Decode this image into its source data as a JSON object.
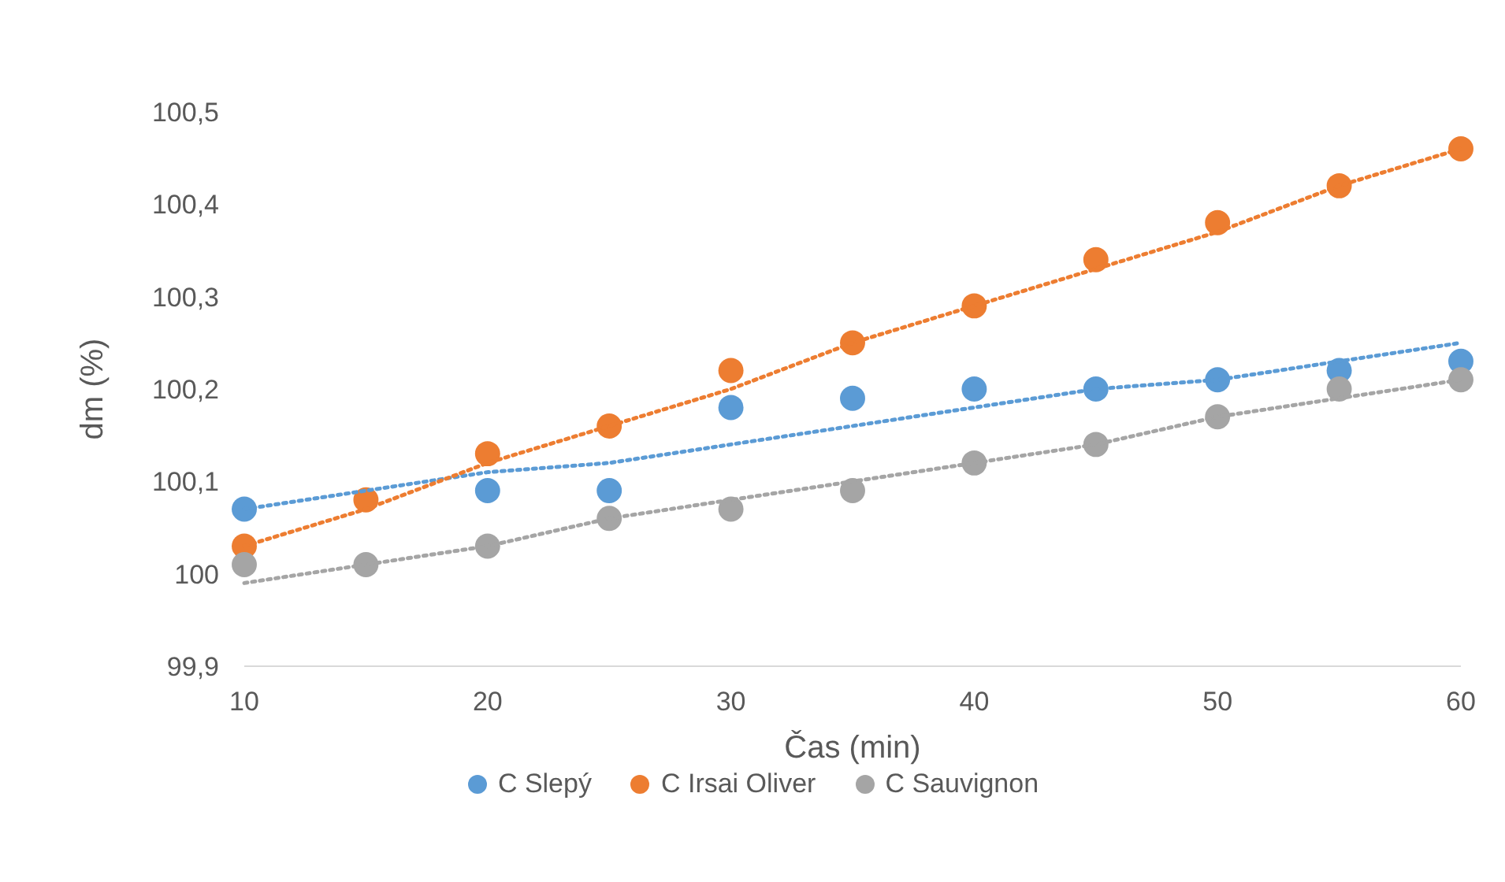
{
  "chart_data": {
    "type": "scatter",
    "xlabel": "Čas (min)",
    "ylabel": "dm (%)",
    "x": [
      10,
      15,
      20,
      25,
      30,
      35,
      40,
      45,
      50,
      55,
      60
    ],
    "series": [
      {
        "name": "C Slepý",
        "color": "#5b9bd5",
        "values": [
          100.07,
          null,
          100.09,
          100.09,
          100.18,
          100.19,
          100.2,
          100.2,
          100.21,
          100.22,
          100.23
        ]
      },
      {
        "name": "C Irsai Oliver",
        "color": "#ed7d31",
        "values": [
          100.03,
          100.08,
          100.13,
          100.16,
          100.22,
          100.25,
          100.29,
          100.34,
          100.38,
          100.42,
          100.46
        ]
      },
      {
        "name": "C Sauvignon",
        "color": "#a5a5a5",
        "values": [
          100.01,
          100.01,
          100.03,
          100.06,
          100.07,
          100.09,
          100.12,
          100.14,
          100.17,
          100.2,
          100.21
        ]
      },
      {
        "type": "line",
        "color": "#5b9bd5",
        "line_style": "dotted",
        "marker": "none",
        "values": [
          100.07,
          100.09,
          100.11,
          100.12,
          100.14,
          100.16,
          100.18,
          100.2,
          100.21,
          100.23,
          100.25
        ]
      },
      {
        "type": "line",
        "color": "#ed7d31",
        "line_style": "dotted",
        "marker": "none",
        "values": [
          100.03,
          100.07,
          100.12,
          100.16,
          100.2,
          100.25,
          100.29,
          100.33,
          100.37,
          100.42,
          100.46
        ]
      },
      {
        "type": "line",
        "color": "#a5a5a5",
        "line_style": "dotted",
        "marker": "none",
        "values": [
          99.99,
          100.01,
          100.03,
          100.06,
          100.08,
          100.1,
          100.12,
          100.14,
          100.17,
          100.19,
          100.21
        ]
      }
    ],
    "xlim": [
      10,
      60
    ],
    "xticks": [
      10,
      20,
      30,
      40,
      50,
      60
    ],
    "ylim": [
      99.9,
      100.5
    ],
    "yticks": [
      {
        "value": 99.9,
        "label": "99,9"
      },
      100,
      {
        "value": 100.1,
        "label": "100,1"
      },
      {
        "value": 100.2,
        "label": "100,2"
      },
      {
        "value": 100.3,
        "label": "100,3"
      },
      {
        "value": 100.4,
        "label": "100,4"
      },
      {
        "value": 100.5,
        "label": "100,5"
      }
    ],
    "grid": false,
    "legend": "bottom",
    "marker": "circle"
  }
}
